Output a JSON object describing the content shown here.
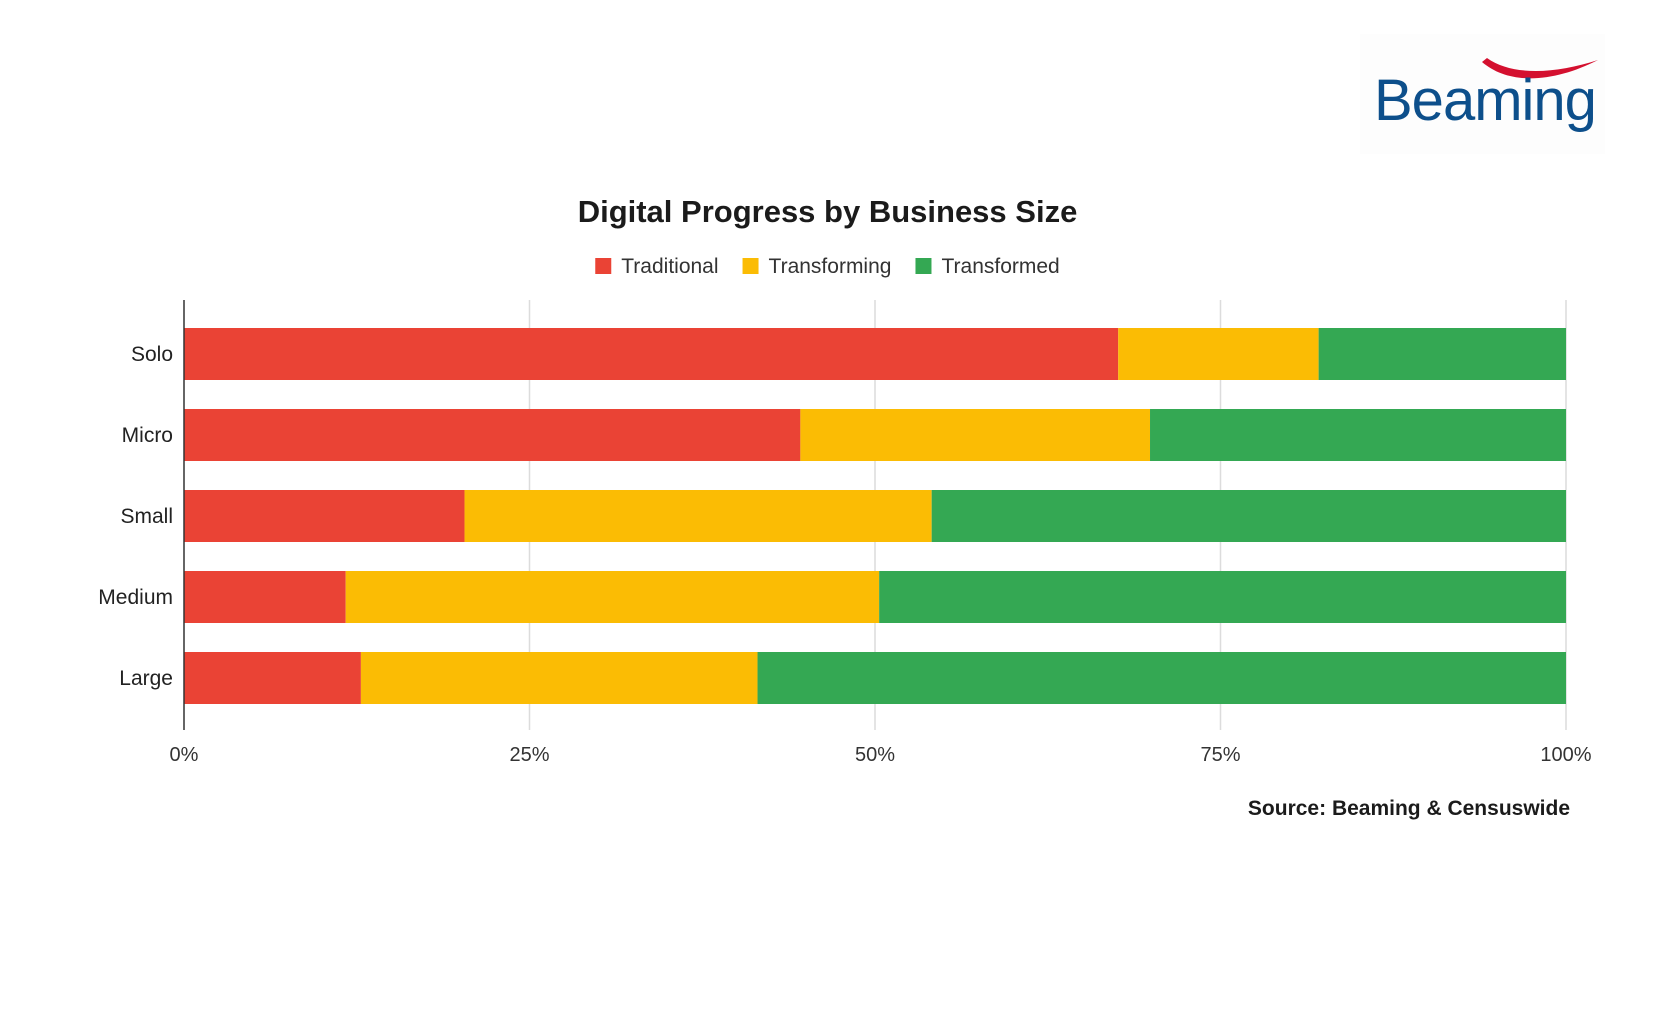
{
  "logo": {
    "text": "Beaming",
    "text_color": "#0d4f8b",
    "swoosh_color": "#d4102f"
  },
  "source": "Source: Beaming & Censuswide",
  "chart_data": {
    "type": "bar",
    "orientation": "horizontal",
    "stacked": true,
    "title": "Digital Progress by Business Size",
    "categories": [
      "Solo",
      "Micro",
      "Small",
      "Medium",
      "Large"
    ],
    "series": [
      {
        "name": "Traditional",
        "color": "#ea4335",
        "values": [
          67.6,
          44.6,
          20.3,
          11.7,
          12.8
        ]
      },
      {
        "name": "Transforming",
        "color": "#fbbc04",
        "values": [
          14.5,
          25.3,
          33.8,
          38.6,
          28.7
        ]
      },
      {
        "name": "Transformed",
        "color": "#34a853",
        "values": [
          17.9,
          30.1,
          45.9,
          49.7,
          58.5
        ]
      }
    ],
    "xlim": [
      0,
      100
    ],
    "x_ticks": [
      0,
      25,
      50,
      75,
      100
    ],
    "x_tick_labels": [
      "0%",
      "25%",
      "50%",
      "75%",
      "100%"
    ],
    "grid": true,
    "legend_position": "top-center"
  }
}
